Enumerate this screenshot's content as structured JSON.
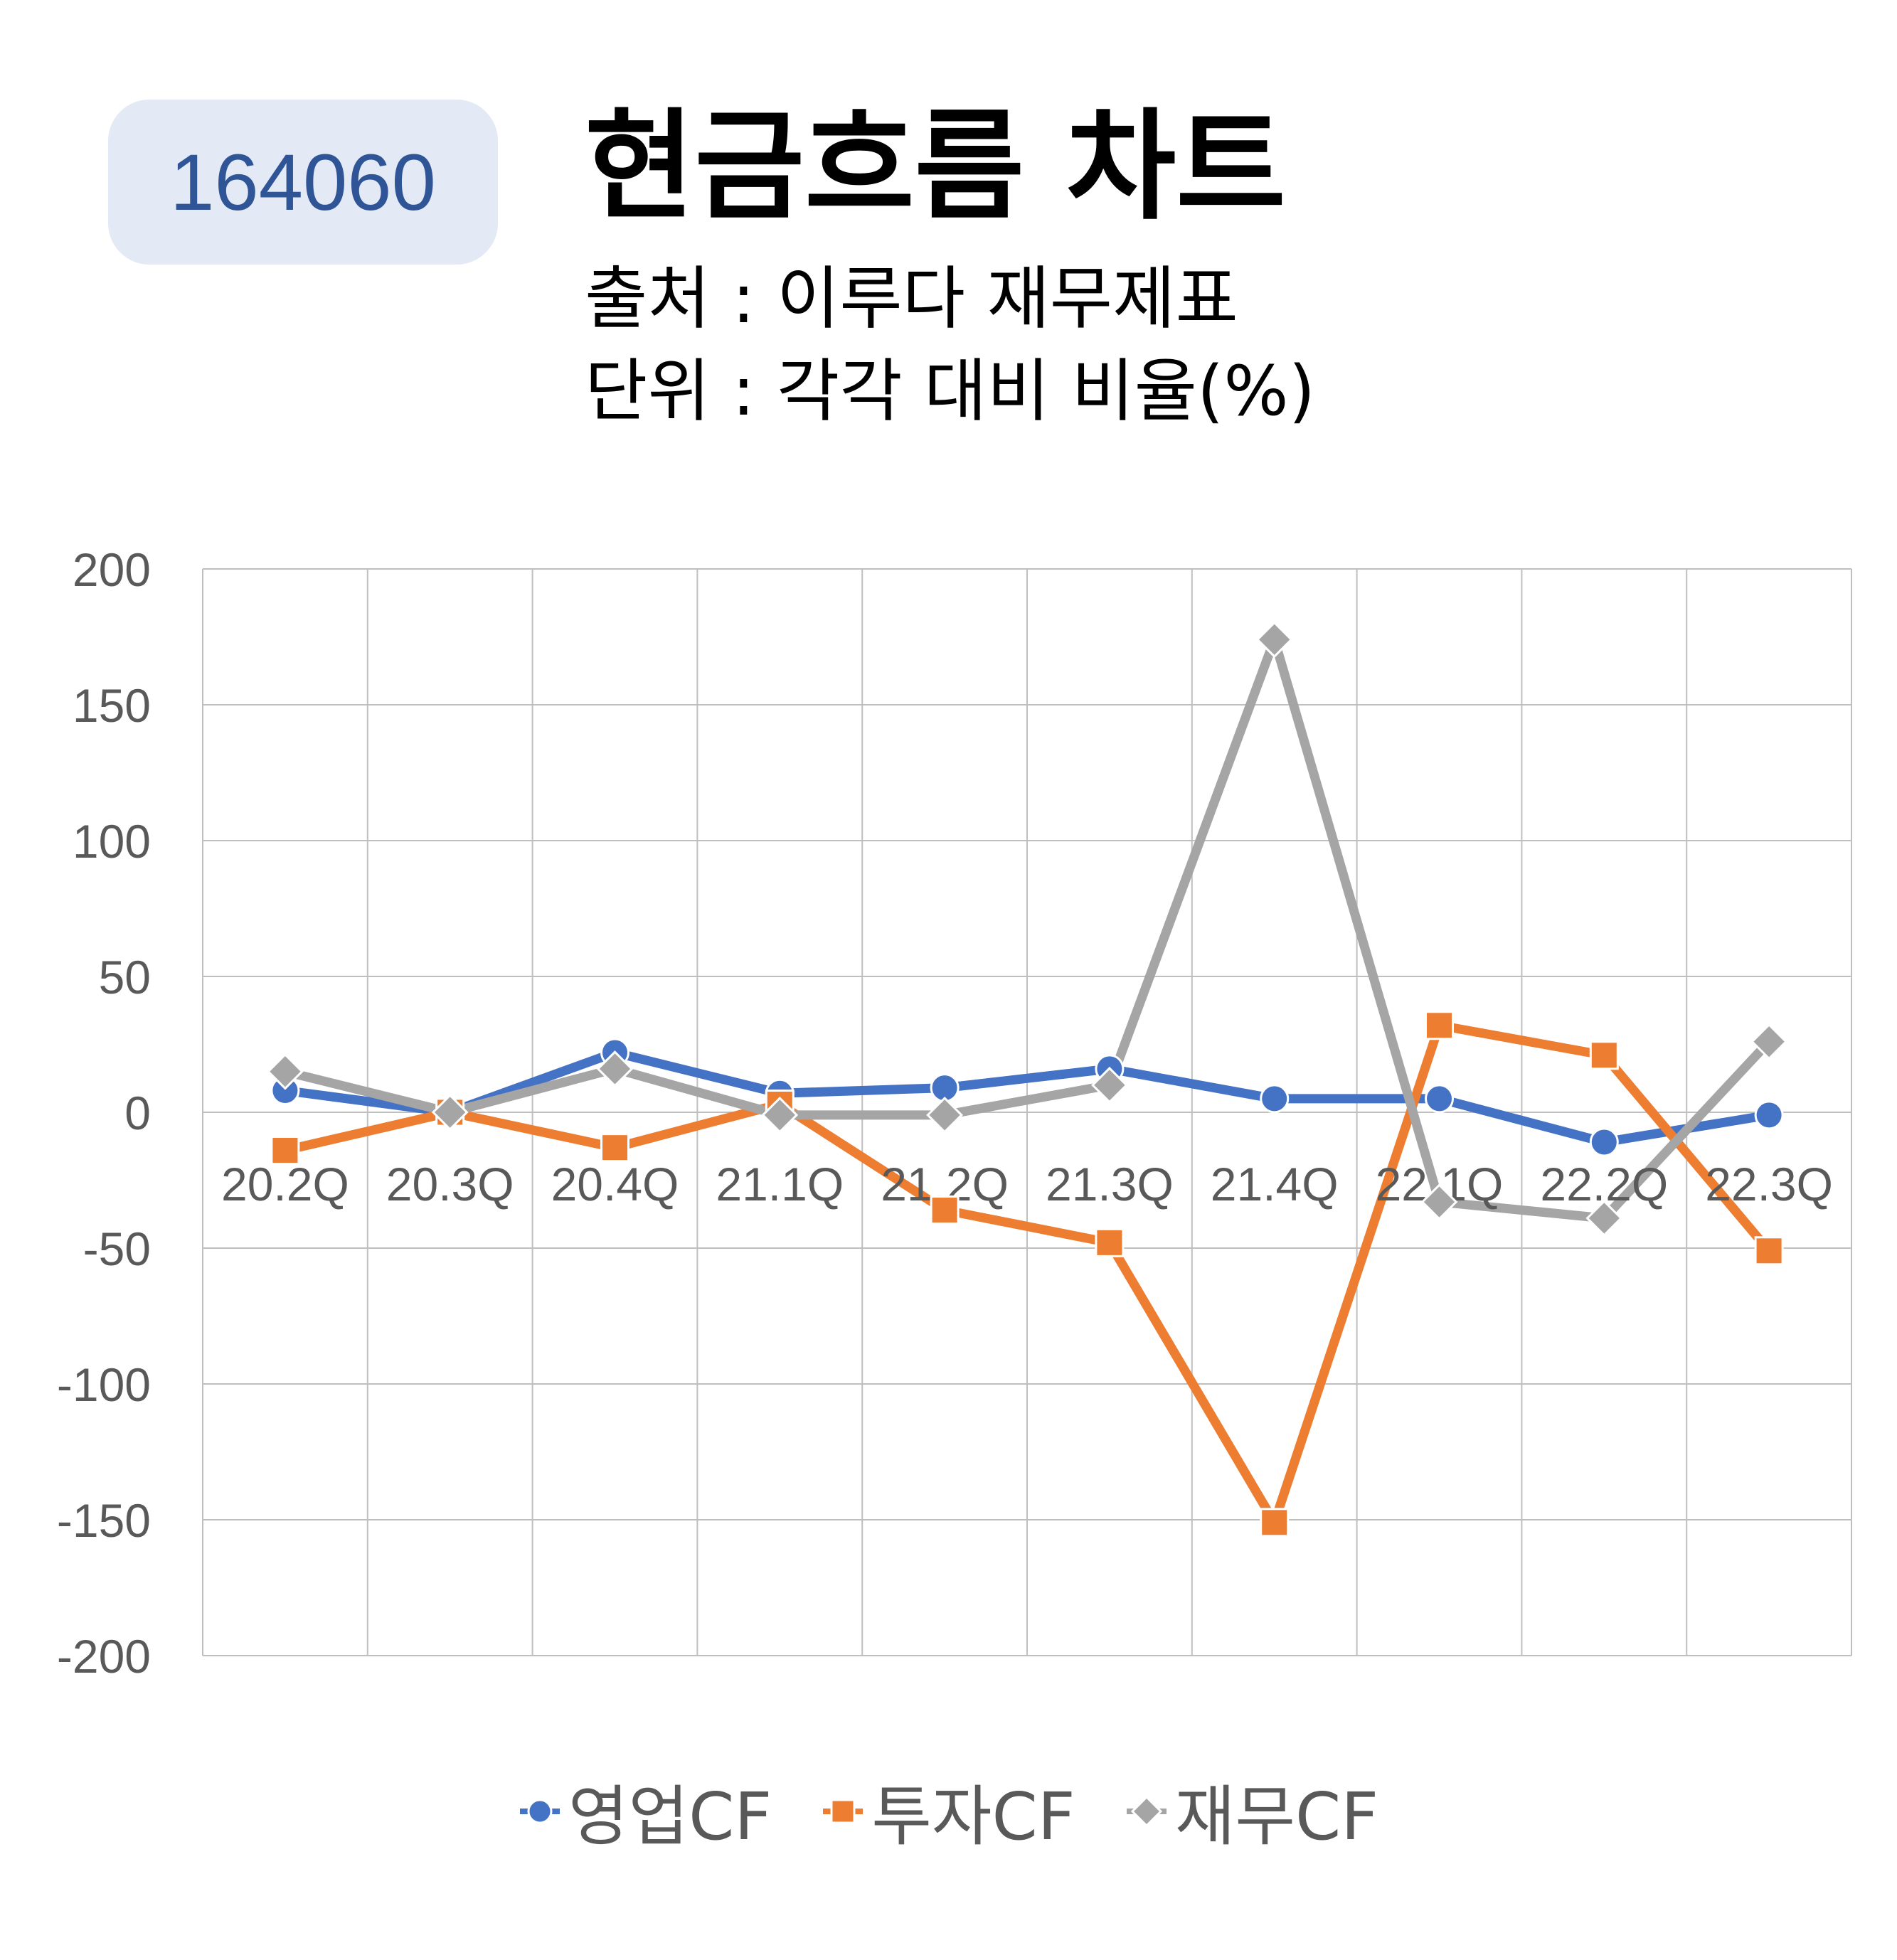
{
  "header": {
    "code": "164060",
    "title": "현금흐름 차트",
    "source": "출처 : 이루다 재무제표",
    "unit": "단위 : 각각 대비 비율(%)"
  },
  "colors": {
    "badge_bg": "#e3e9f5",
    "badge_text": "#2f5597",
    "operating": "#4472c4",
    "investing": "#ed7d31",
    "financing": "#a5a5a5",
    "grid": "#bfbfbf",
    "tick_text": "#595959"
  },
  "chart_data": {
    "type": "line",
    "categories": [
      "20.2Q",
      "20.3Q",
      "20.4Q",
      "21.1Q",
      "21.2Q",
      "21.3Q",
      "21.4Q",
      "22.1Q",
      "22.2Q",
      "22.3Q"
    ],
    "ylim": [
      -200,
      200
    ],
    "yticks": [
      200,
      150,
      100,
      50,
      0,
      -50,
      -100,
      -150,
      -200
    ],
    "grid": true,
    "legend_position": "bottom",
    "series": [
      {
        "name": "영업CF",
        "marker": "circle",
        "color": "#4472c4",
        "values": [
          8,
          0,
          22,
          7,
          9,
          16,
          5,
          5,
          -11,
          -1
        ]
      },
      {
        "name": "투자CF",
        "marker": "square",
        "color": "#ed7d31",
        "values": [
          -14,
          0,
          -13,
          3,
          -36,
          -48,
          -151,
          32,
          21,
          -51
        ]
      },
      {
        "name": "재무CF",
        "marker": "diamond",
        "color": "#a5a5a5",
        "values": [
          15,
          0,
          16,
          -1,
          -1,
          10,
          174,
          -33,
          -39,
          26
        ]
      }
    ]
  }
}
